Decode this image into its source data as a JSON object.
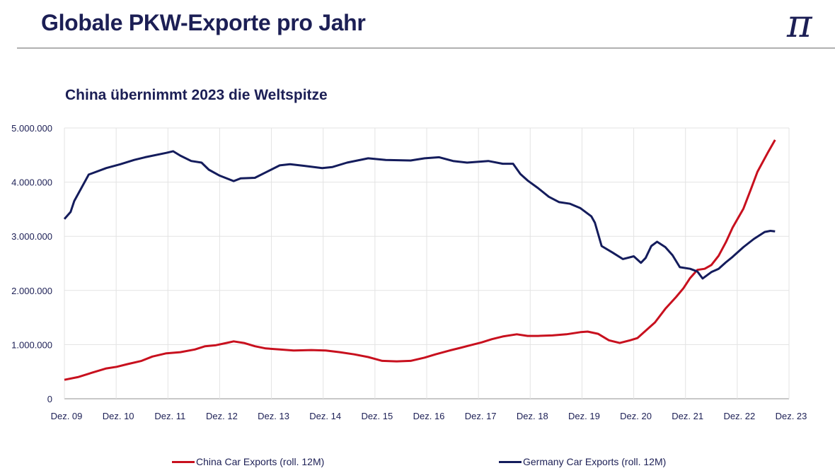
{
  "header": {
    "title": "Globale PKW-Exporte pro Jahr",
    "logo_text": "π"
  },
  "chart_data": {
    "type": "line",
    "title": "China übernimmt 2023 die Weltspitze",
    "xlabel": "",
    "ylabel": "",
    "x_unit": "years since Dez. 09",
    "xlim": [
      0,
      14
    ],
    "ylim": [
      0,
      5000000
    ],
    "grid": true,
    "legend_position": "bottom",
    "x_tick_labels": [
      "Dez. 09",
      "Dez. 10",
      "Dez. 11",
      "Dez. 12",
      "Dez. 13",
      "Dez. 14",
      "Dez. 15",
      "Dez. 16",
      "Dez. 17",
      "Dez. 18",
      "Dez. 19",
      "Dez. 20",
      "Dez. 21",
      "Dez. 22",
      "Dez. 23"
    ],
    "y_ticks": [
      0,
      1000000,
      2000000,
      3000000,
      4000000,
      5000000
    ],
    "y_tick_labels": [
      "0",
      "1.000.000",
      "2.000.000",
      "3.000.000",
      "4.000.000",
      "5.000.000"
    ],
    "series": [
      {
        "name": "China Car Exports (roll. 12M)",
        "color": "#c8101e",
        "x": [
          0,
          0.26,
          0.53,
          0.81,
          1.01,
          1.22,
          1.49,
          1.7,
          1.97,
          2.24,
          2.52,
          2.72,
          2.93,
          3.13,
          3.27,
          3.47,
          3.68,
          3.89,
          4.16,
          4.43,
          4.77,
          5.05,
          5.32,
          5.6,
          5.87,
          6.14,
          6.42,
          6.69,
          6.96,
          7.17,
          7.44,
          7.65,
          7.85,
          8.06,
          8.26,
          8.47,
          8.74,
          8.95,
          9.15,
          9.43,
          9.7,
          9.97,
          10.11,
          10.31,
          10.52,
          10.73,
          10.93,
          11.07,
          11.2,
          11.41,
          11.61,
          11.82,
          11.96,
          12.09,
          12.23,
          12.37,
          12.5,
          12.64,
          12.78,
          12.91,
          13.12,
          13.26,
          13.39,
          13.6,
          13.73
        ],
        "y": [
          350000,
          400000,
          480000,
          560000,
          590000,
          640000,
          700000,
          780000,
          840000,
          860000,
          910000,
          970000,
          990000,
          1030000,
          1060000,
          1030000,
          970000,
          930000,
          910000,
          890000,
          900000,
          890000,
          860000,
          820000,
          770000,
          700000,
          690000,
          700000,
          760000,
          820000,
          890000,
          940000,
          990000,
          1040000,
          1100000,
          1150000,
          1190000,
          1160000,
          1160000,
          1170000,
          1190000,
          1230000,
          1240000,
          1200000,
          1080000,
          1030000,
          1080000,
          1120000,
          1230000,
          1410000,
          1660000,
          1880000,
          2040000,
          2230000,
          2380000,
          2400000,
          2470000,
          2640000,
          2890000,
          3160000,
          3510000,
          3860000,
          4190000,
          4560000,
          4780000
        ]
      },
      {
        "name": "Germany Car Exports (roll. 12M)",
        "color": "#141c5c",
        "x": [
          0,
          0.12,
          0.19,
          0.47,
          0.81,
          1.08,
          1.35,
          1.56,
          1.97,
          2.1,
          2.24,
          2.45,
          2.65,
          2.79,
          3.0,
          3.27,
          3.41,
          3.68,
          3.89,
          4.16,
          4.36,
          4.64,
          4.98,
          5.18,
          5.46,
          5.87,
          6.21,
          6.69,
          6.96,
          7.24,
          7.51,
          7.78,
          8.19,
          8.47,
          8.67,
          8.81,
          8.95,
          9.15,
          9.36,
          9.56,
          9.77,
          9.97,
          10.18,
          10.25,
          10.38,
          10.59,
          10.79,
          11.0,
          11.14,
          11.23,
          11.34,
          11.45,
          11.61,
          11.75,
          11.89,
          12.09,
          12.23,
          12.33,
          12.5,
          12.64,
          12.78,
          12.91,
          13.12,
          13.32,
          13.53,
          13.64,
          13.73
        ],
        "y": [
          3320000,
          3450000,
          3650000,
          4140000,
          4260000,
          4330000,
          4410000,
          4460000,
          4540000,
          4570000,
          4490000,
          4390000,
          4360000,
          4230000,
          4120000,
          4020000,
          4070000,
          4080000,
          4180000,
          4310000,
          4330000,
          4300000,
          4260000,
          4280000,
          4360000,
          4440000,
          4410000,
          4400000,
          4440000,
          4460000,
          4390000,
          4360000,
          4390000,
          4340000,
          4340000,
          4150000,
          4030000,
          3890000,
          3730000,
          3630000,
          3600000,
          3520000,
          3370000,
          3250000,
          2820000,
          2700000,
          2580000,
          2630000,
          2510000,
          2600000,
          2820000,
          2900000,
          2800000,
          2650000,
          2430000,
          2400000,
          2350000,
          2220000,
          2340000,
          2400000,
          2520000,
          2620000,
          2800000,
          2950000,
          3080000,
          3100000,
          3090000
        ]
      }
    ]
  }
}
